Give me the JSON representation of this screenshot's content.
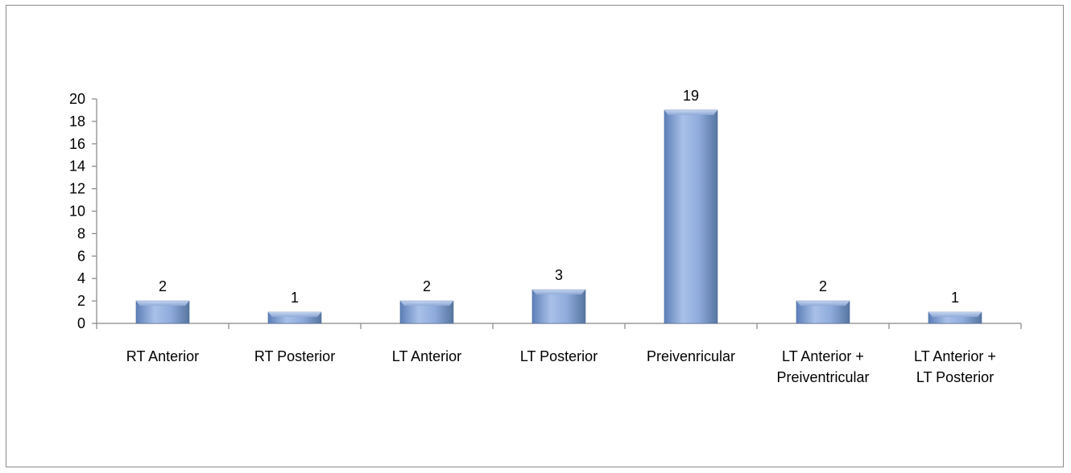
{
  "chart_data": {
    "type": "bar",
    "title": "",
    "xlabel": "",
    "ylabel": "",
    "ylim": [
      0,
      20
    ],
    "yticks": [
      0,
      2,
      4,
      6,
      8,
      10,
      12,
      14,
      16,
      18,
      20
    ],
    "grid": false,
    "legend": "none",
    "bar_color": "#7f9fd0",
    "categories": [
      [
        "RT Anterior"
      ],
      [
        "RT Posterior"
      ],
      [
        "LT Anterior"
      ],
      [
        "LT Posterior"
      ],
      [
        "Preivenricular"
      ],
      [
        "LT Anterior +",
        "Preiventricular"
      ],
      [
        "LT  Anterior +",
        "LT Posterior"
      ]
    ],
    "values": [
      2,
      1,
      2,
      3,
      19,
      2,
      1
    ],
    "data_labels": [
      "2",
      "1",
      "2",
      "3",
      "19",
      "2",
      "1"
    ]
  }
}
